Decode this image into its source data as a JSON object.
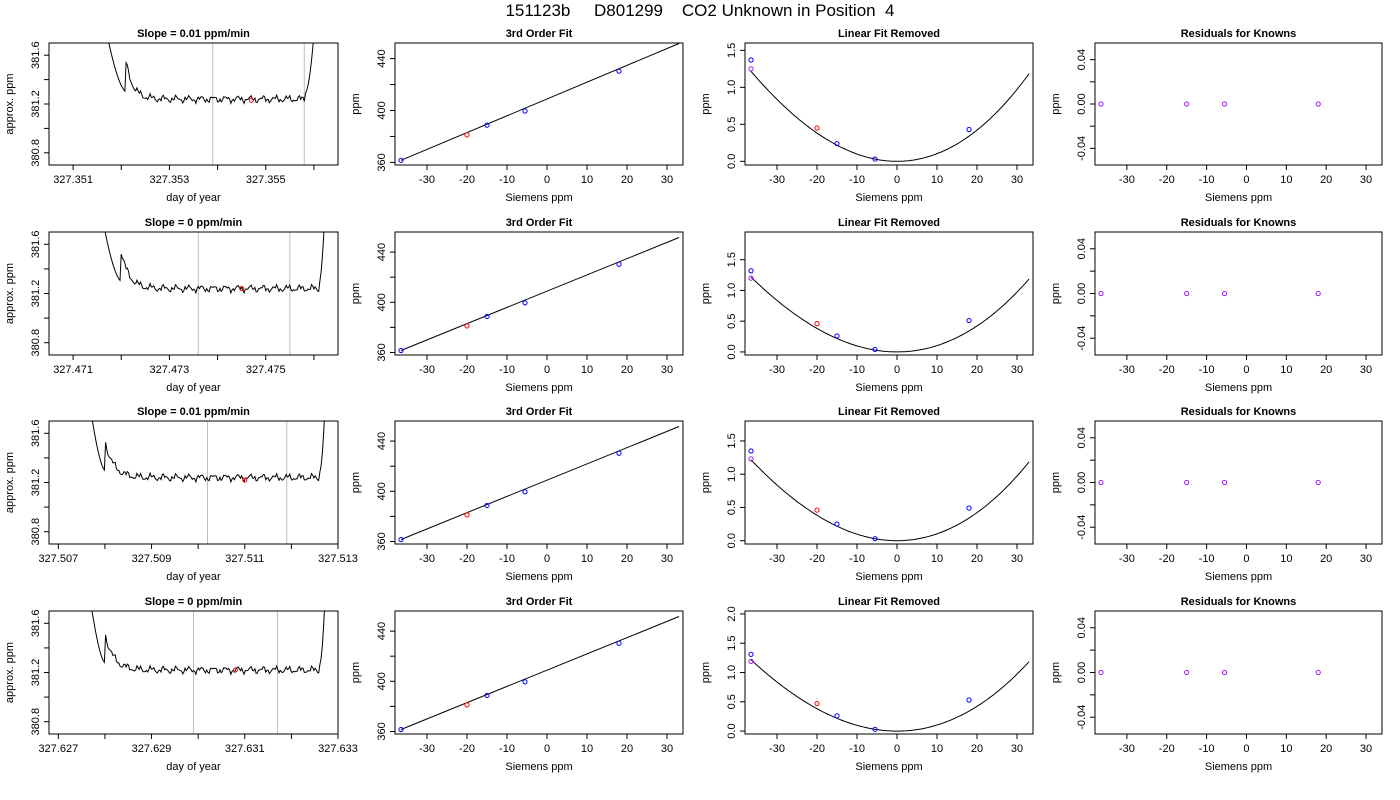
{
  "figure_title": "151123b     D801299    CO2 Unknown in Position  4",
  "colors": {
    "trace": "#000000",
    "gridline": "#bebebe",
    "known": "#0000ff",
    "unknown": "#ff0000",
    "point_alt": "#a020f0",
    "fit": "#000000"
  },
  "chart_data": [
    {
      "type": "line",
      "row": 1,
      "title": "Slope =  0.01  ppm/min",
      "xlabel": "day of year",
      "ylabel": "approx. ppm",
      "xlim": [
        327.3505,
        327.3565
      ],
      "ylim": [
        380.7,
        381.7
      ],
      "xticks": [
        327.351,
        327.352,
        327.353,
        327.354,
        327.355,
        327.356
      ],
      "xtick_labels": [
        "327.351",
        "",
        "327.353",
        "",
        "327.355",
        ""
      ],
      "yticks": [
        380.8,
        381.0,
        381.2,
        381.4,
        381.6
      ],
      "ytick_labels": [
        "380.8",
        "",
        "381.2",
        "",
        "381.6"
      ],
      "baseline": 381.24,
      "rise_start": 327.3521,
      "rise_end": 327.3558,
      "vlines": [
        327.3539,
        327.3558
      ],
      "marker": {
        "x": 327.3547,
        "y": 381.23
      }
    },
    {
      "type": "line",
      "row": 1,
      "title": "3rd Order Fit",
      "xlabel": "Siemens ppm",
      "ylabel": "ppm",
      "xlim": [
        -38,
        34
      ],
      "ylim": [
        358,
        452
      ],
      "xticks": [
        -30,
        -20,
        -10,
        0,
        10,
        20,
        30
      ],
      "xtick_labels": [
        "-30",
        "-20",
        "-10",
        "0",
        "10",
        "20",
        "30"
      ],
      "yticks": [
        360,
        380,
        400,
        420,
        440
      ],
      "ytick_labels": [
        "360",
        "",
        "400",
        "",
        "440"
      ],
      "fit_line": {
        "x": [
          -36.5,
          33
        ],
        "y": [
          361.6,
          451.6
        ]
      },
      "points": [
        {
          "x": -36.5,
          "y": 361.6,
          "kind": "known"
        },
        {
          "x": -20,
          "y": 381.2,
          "kind": "unknown"
        },
        {
          "x": -15,
          "y": 388.7,
          "kind": "known"
        },
        {
          "x": -5.5,
          "y": 399.6,
          "kind": "known"
        },
        {
          "x": 18,
          "y": 430.3,
          "kind": "known"
        }
      ]
    },
    {
      "type": "scatter",
      "row": 1,
      "title": "Linear Fit Removed",
      "xlabel": "Siemens ppm",
      "ylabel": "ppm",
      "xlim": [
        -38,
        34
      ],
      "ylim": [
        -0.05,
        1.6
      ],
      "xticks": [
        -30,
        -20,
        -10,
        0,
        10,
        20,
        30
      ],
      "xtick_labels": [
        "-30",
        "-20",
        "-10",
        "0",
        "10",
        "20",
        "30"
      ],
      "yticks": [
        0,
        0.5,
        1.0,
        1.5
      ],
      "ytick_labels": [
        "0.0",
        "0.5",
        "1.0",
        "1.5"
      ],
      "curve": {
        "x_from": -36.5,
        "x_to": 33,
        "vertex": 0,
        "a": 0.001005,
        "b": 2.5e-06
      },
      "points": [
        {
          "x": -36.5,
          "y": 1.37,
          "kind": "known"
        },
        {
          "x": -36.5,
          "y": 1.25,
          "kind": "point_alt"
        },
        {
          "x": -20,
          "y": 0.45,
          "kind": "unknown"
        },
        {
          "x": -15,
          "y": 0.24,
          "kind": "known"
        },
        {
          "x": -5.5,
          "y": 0.03,
          "kind": "known"
        },
        {
          "x": 18,
          "y": 0.43,
          "kind": "known"
        }
      ]
    },
    {
      "type": "scatter",
      "row": 1,
      "title": "Residuals for Knowns",
      "xlabel": "Siemens ppm",
      "ylabel": "ppm",
      "xlim": [
        -38,
        34
      ],
      "ylim": [
        -0.055,
        0.055
      ],
      "xticks": [
        -30,
        -20,
        -10,
        0,
        10,
        20,
        30
      ],
      "xtick_labels": [
        "-30",
        "-20",
        "-10",
        "0",
        "10",
        "20",
        "30"
      ],
      "yticks": [
        -0.04,
        -0.02,
        0,
        0.02,
        0.04
      ],
      "ytick_labels": [
        "-0.04",
        "",
        "0.00",
        "",
        "0.04"
      ],
      "points": [
        {
          "x": -36.5,
          "y": 0
        },
        {
          "x": -15,
          "y": 0
        },
        {
          "x": -5.5,
          "y": 0
        },
        {
          "x": 18,
          "y": 0
        }
      ]
    },
    {
      "type": "line",
      "row": 2,
      "title": "Slope =  0  ppm/min",
      "xlabel": "day of year",
      "ylabel": "approx. ppm",
      "xlim": [
        327.4705,
        327.4765
      ],
      "ylim": [
        380.7,
        381.7
      ],
      "xticks": [
        327.471,
        327.472,
        327.473,
        327.474,
        327.475,
        327.476
      ],
      "xtick_labels": [
        "327.471",
        "",
        "327.473",
        "",
        "327.475",
        ""
      ],
      "yticks": [
        380.8,
        381.0,
        381.2,
        381.4,
        381.6
      ],
      "ytick_labels": [
        "380.8",
        "",
        "381.2",
        "",
        "381.6"
      ],
      "baseline": 381.24,
      "rise_start": 327.472,
      "rise_end": 327.4761,
      "vlines": [
        327.4736,
        327.4755
      ],
      "marker": {
        "x": 327.4745,
        "y": 381.24
      }
    },
    {
      "type": "line",
      "row": 2,
      "title": "3rd Order Fit",
      "xlabel": "Siemens ppm",
      "ylabel": "ppm",
      "xlim": [
        -38,
        34
      ],
      "ylim": [
        358,
        456
      ],
      "xticks": [
        -30,
        -20,
        -10,
        0,
        10,
        20,
        30
      ],
      "xtick_labels": [
        "-30",
        "-20",
        "-10",
        "0",
        "10",
        "20",
        "30"
      ],
      "yticks": [
        360,
        380,
        400,
        420,
        440
      ],
      "ytick_labels": [
        "360",
        "",
        "400",
        "",
        "440"
      ],
      "fit_line": {
        "x": [
          -36.5,
          33
        ],
        "y": [
          361.6,
          451.6
        ]
      },
      "points": [
        {
          "x": -36.5,
          "y": 361.6,
          "kind": "known"
        },
        {
          "x": -20,
          "y": 381.2,
          "kind": "unknown"
        },
        {
          "x": -15,
          "y": 388.7,
          "kind": "known"
        },
        {
          "x": -5.5,
          "y": 399.6,
          "kind": "known"
        },
        {
          "x": 18,
          "y": 430.3,
          "kind": "known"
        }
      ]
    },
    {
      "type": "scatter",
      "row": 2,
      "title": "Linear Fit Removed",
      "xlabel": "Siemens ppm",
      "ylabel": "ppm",
      "xlim": [
        -38,
        34
      ],
      "ylim": [
        -0.05,
        1.95
      ],
      "xticks": [
        -30,
        -20,
        -10,
        0,
        10,
        20,
        30
      ],
      "xtick_labels": [
        "-30",
        "-20",
        "-10",
        "0",
        "10",
        "20",
        "30"
      ],
      "yticks": [
        0,
        0.5,
        1.0,
        1.5
      ],
      "ytick_labels": [
        "0.0",
        "0.5",
        "1.0",
        "1.5"
      ],
      "curve": {
        "x_from": -36.5,
        "x_to": 33,
        "vertex": 0,
        "a": 0.001005,
        "b": 2.5e-06
      },
      "points": [
        {
          "x": -36.5,
          "y": 1.32,
          "kind": "known"
        },
        {
          "x": -36.5,
          "y": 1.2,
          "kind": "point_alt"
        },
        {
          "x": -20,
          "y": 0.46,
          "kind": "unknown"
        },
        {
          "x": -15,
          "y": 0.26,
          "kind": "known"
        },
        {
          "x": -5.5,
          "y": 0.04,
          "kind": "known"
        },
        {
          "x": 18,
          "y": 0.51,
          "kind": "known"
        }
      ]
    },
    {
      "type": "scatter",
      "row": 2,
      "title": "Residuals for Knowns",
      "xlabel": "Siemens ppm",
      "ylabel": "ppm",
      "xlim": [
        -38,
        34
      ],
      "ylim": [
        -0.055,
        0.055
      ],
      "xticks": [
        -30,
        -20,
        -10,
        0,
        10,
        20,
        30
      ],
      "xtick_labels": [
        "-30",
        "-20",
        "-10",
        "0",
        "10",
        "20",
        "30"
      ],
      "yticks": [
        -0.04,
        -0.02,
        0,
        0.02,
        0.04
      ],
      "ytick_labels": [
        "-0.04",
        "",
        "0.00",
        "",
        "0.04"
      ],
      "points": [
        {
          "x": -36.5,
          "y": 0
        },
        {
          "x": -15,
          "y": 0
        },
        {
          "x": -5.5,
          "y": 0
        },
        {
          "x": 18,
          "y": 0
        }
      ]
    },
    {
      "type": "line",
      "row": 3,
      "title": "Slope =  0.01  ppm/min",
      "xlabel": "day of year",
      "ylabel": "approx. ppm",
      "xlim": [
        327.5068,
        327.513
      ],
      "ylim": [
        380.7,
        381.7
      ],
      "xticks": [
        327.507,
        327.508,
        327.509,
        327.51,
        327.511,
        327.512,
        327.513
      ],
      "xtick_labels": [
        "327.507",
        "",
        "327.509",
        "",
        "327.511",
        "",
        "327.513"
      ],
      "yticks": [
        380.8,
        381.0,
        381.2,
        381.4,
        381.6
      ],
      "ytick_labels": [
        "380.8",
        "",
        "381.2",
        "",
        "381.6"
      ],
      "baseline": 381.24,
      "rise_start": 327.508,
      "rise_end": 327.5126,
      "vlines": [
        327.5102,
        327.5119
      ],
      "marker": {
        "x": 327.511,
        "y": 381.22
      }
    },
    {
      "type": "line",
      "row": 3,
      "title": "3rd Order Fit",
      "xlabel": "Siemens ppm",
      "ylabel": "ppm",
      "xlim": [
        -38,
        34
      ],
      "ylim": [
        358,
        456
      ],
      "xticks": [
        -30,
        -20,
        -10,
        0,
        10,
        20,
        30
      ],
      "xtick_labels": [
        "-30",
        "-20",
        "-10",
        "0",
        "10",
        "20",
        "30"
      ],
      "yticks": [
        360,
        380,
        400,
        420,
        440
      ],
      "ytick_labels": [
        "360",
        "",
        "400",
        "",
        "440"
      ],
      "fit_line": {
        "x": [
          -36.5,
          33
        ],
        "y": [
          361.6,
          451.6
        ]
      },
      "points": [
        {
          "x": -36.5,
          "y": 361.6,
          "kind": "known"
        },
        {
          "x": -20,
          "y": 381.2,
          "kind": "unknown"
        },
        {
          "x": -15,
          "y": 388.7,
          "kind": "known"
        },
        {
          "x": -5.5,
          "y": 399.6,
          "kind": "known"
        },
        {
          "x": 18,
          "y": 430.3,
          "kind": "known"
        }
      ]
    },
    {
      "type": "scatter",
      "row": 3,
      "title": "Linear Fit Removed",
      "xlabel": "Siemens ppm",
      "ylabel": "ppm",
      "xlim": [
        -38,
        34
      ],
      "ylim": [
        -0.05,
        1.8
      ],
      "xticks": [
        -30,
        -20,
        -10,
        0,
        10,
        20,
        30
      ],
      "xtick_labels": [
        "-30",
        "-20",
        "-10",
        "0",
        "10",
        "20",
        "30"
      ],
      "yticks": [
        0,
        0.5,
        1.0,
        1.5
      ],
      "ytick_labels": [
        "0.0",
        "0.5",
        "1.0",
        "1.5"
      ],
      "curve": {
        "x_from": -36.5,
        "x_to": 33,
        "vertex": 0,
        "a": 0.001005,
        "b": 2.5e-06
      },
      "points": [
        {
          "x": -36.5,
          "y": 1.35,
          "kind": "known"
        },
        {
          "x": -36.5,
          "y": 1.23,
          "kind": "point_alt"
        },
        {
          "x": -20,
          "y": 0.46,
          "kind": "unknown"
        },
        {
          "x": -15,
          "y": 0.25,
          "kind": "known"
        },
        {
          "x": -5.5,
          "y": 0.03,
          "kind": "known"
        },
        {
          "x": 18,
          "y": 0.49,
          "kind": "known"
        }
      ]
    },
    {
      "type": "scatter",
      "row": 3,
      "title": "Residuals for Knowns",
      "xlabel": "Siemens ppm",
      "ylabel": "ppm",
      "xlim": [
        -38,
        34
      ],
      "ylim": [
        -0.055,
        0.055
      ],
      "xticks": [
        -30,
        -20,
        -10,
        0,
        10,
        20,
        30
      ],
      "xtick_labels": [
        "-30",
        "-20",
        "-10",
        "0",
        "10",
        "20",
        "30"
      ],
      "yticks": [
        -0.04,
        -0.02,
        0,
        0.02,
        0.04
      ],
      "ytick_labels": [
        "-0.04",
        "",
        "0.00",
        "",
        "0.04"
      ],
      "points": [
        {
          "x": -36.5,
          "y": 0
        },
        {
          "x": -15,
          "y": 0
        },
        {
          "x": -5.5,
          "y": 0
        },
        {
          "x": 18,
          "y": 0
        }
      ]
    },
    {
      "type": "line",
      "row": 4,
      "title": "Slope =  0  ppm/min",
      "xlabel": "day of year",
      "ylabel": "approx. ppm",
      "xlim": [
        327.6268,
        327.633
      ],
      "ylim": [
        380.7,
        381.7
      ],
      "xticks": [
        327.627,
        327.628,
        327.629,
        327.63,
        327.631,
        327.632,
        327.633
      ],
      "xtick_labels": [
        "327.627",
        "",
        "327.629",
        "",
        "327.631",
        "",
        "327.633"
      ],
      "yticks": [
        380.8,
        381.0,
        381.2,
        381.4,
        381.6
      ],
      "ytick_labels": [
        "380.8",
        "",
        "381.2",
        "",
        "381.6"
      ],
      "baseline": 381.22,
      "rise_start": 327.628,
      "rise_end": 327.6326,
      "vlines": [
        327.6299,
        327.6317
      ],
      "marker": {
        "x": 327.6308,
        "y": 381.22
      }
    },
    {
      "type": "line",
      "row": 4,
      "title": "3rd Order Fit",
      "xlabel": "Siemens ppm",
      "ylabel": "ppm",
      "xlim": [
        -38,
        34
      ],
      "ylim": [
        358,
        456
      ],
      "xticks": [
        -30,
        -20,
        -10,
        0,
        10,
        20,
        30
      ],
      "xtick_labels": [
        "-30",
        "-20",
        "-10",
        "0",
        "10",
        "20",
        "30"
      ],
      "yticks": [
        360,
        380,
        400,
        420,
        440
      ],
      "ytick_labels": [
        "360",
        "",
        "400",
        "",
        "440"
      ],
      "fit_line": {
        "x": [
          -36.5,
          33
        ],
        "y": [
          361.6,
          451.6
        ]
      },
      "points": [
        {
          "x": -36.5,
          "y": 361.6,
          "kind": "known"
        },
        {
          "x": -20,
          "y": 381.2,
          "kind": "unknown"
        },
        {
          "x": -15,
          "y": 388.7,
          "kind": "known"
        },
        {
          "x": -5.5,
          "y": 399.6,
          "kind": "known"
        },
        {
          "x": 18,
          "y": 430.3,
          "kind": "known"
        }
      ]
    },
    {
      "type": "scatter",
      "row": 4,
      "title": "Linear Fit Removed",
      "xlabel": "Siemens ppm",
      "ylabel": "ppm",
      "xlim": [
        -38,
        34
      ],
      "ylim": [
        -0.05,
        2.05
      ],
      "xticks": [
        -30,
        -20,
        -10,
        0,
        10,
        20,
        30
      ],
      "xtick_labels": [
        "-30",
        "-20",
        "-10",
        "0",
        "10",
        "20",
        "30"
      ],
      "yticks": [
        0,
        0.5,
        1.0,
        1.5,
        2.0
      ],
      "ytick_labels": [
        "0.0",
        "0.5",
        "1.0",
        "1.5",
        "2.0"
      ],
      "curve": {
        "x_from": -36.5,
        "x_to": 33,
        "vertex": 0,
        "a": 0.001005,
        "b": 2.5e-06
      },
      "points": [
        {
          "x": -36.5,
          "y": 1.31,
          "kind": "known"
        },
        {
          "x": -36.5,
          "y": 1.19,
          "kind": "point_alt"
        },
        {
          "x": -20,
          "y": 0.47,
          "kind": "unknown"
        },
        {
          "x": -15,
          "y": 0.26,
          "kind": "known"
        },
        {
          "x": -5.5,
          "y": 0.03,
          "kind": "known"
        },
        {
          "x": 18,
          "y": 0.53,
          "kind": "known"
        }
      ]
    },
    {
      "type": "scatter",
      "row": 4,
      "title": "Residuals for Knowns",
      "xlabel": "Siemens ppm",
      "ylabel": "ppm",
      "xlim": [
        -38,
        34
      ],
      "ylim": [
        -0.055,
        0.055
      ],
      "xticks": [
        -30,
        -20,
        -10,
        0,
        10,
        20,
        30
      ],
      "xtick_labels": [
        "-30",
        "-20",
        "-10",
        "0",
        "10",
        "20",
        "30"
      ],
      "yticks": [
        -0.04,
        -0.02,
        0,
        0.02,
        0.04
      ],
      "ytick_labels": [
        "-0.04",
        "",
        "0.00",
        "",
        "0.04"
      ],
      "points": [
        {
          "x": -36.5,
          "y": 0
        },
        {
          "x": -15,
          "y": 0
        },
        {
          "x": -5.5,
          "y": 0
        },
        {
          "x": 18,
          "y": 0
        }
      ]
    }
  ]
}
